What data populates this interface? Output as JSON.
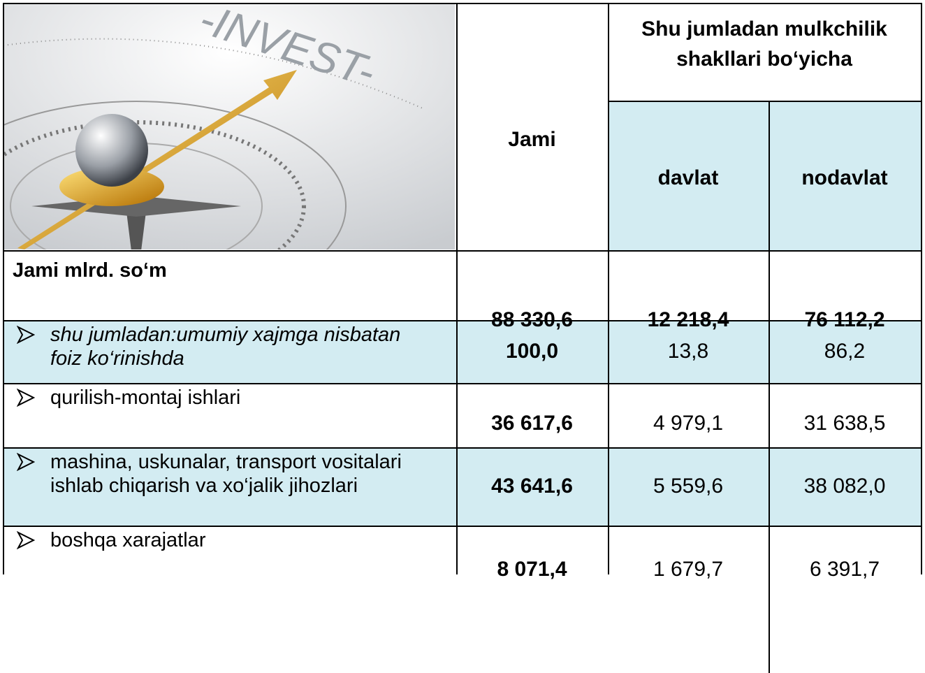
{
  "image": {
    "caption": "-INVEST-"
  },
  "table": {
    "header": {
      "total": "Jami",
      "group": "Shu jumladan mulkchilik shakllari bo‘yicha",
      "columns": [
        "davlat",
        "nodavlat"
      ]
    },
    "rows": [
      [
        "Jami mlrd. so‘m",
        "88 330,6",
        "12 218,4",
        "76 112,2"
      ],
      [
        "shu jumladan:umumiy xajmga nisbatan foiz ko‘rinishda",
        "100,0",
        "13,8",
        "86,2"
      ],
      [
        "qurilish-montaj ishlari",
        "36 617,6",
        "4 979,1",
        "31 638,5"
      ],
      [
        "mashina, uskunalar, transport vositalari ishlab chiqarish va xo‘jalik jihozlari",
        "43 641,6",
        "5 559,6",
        "38 082,0"
      ],
      [
        "boshqa xarajatlar",
        "8 071,4",
        "1 679,7",
        "6 391,7"
      ]
    ]
  }
}
